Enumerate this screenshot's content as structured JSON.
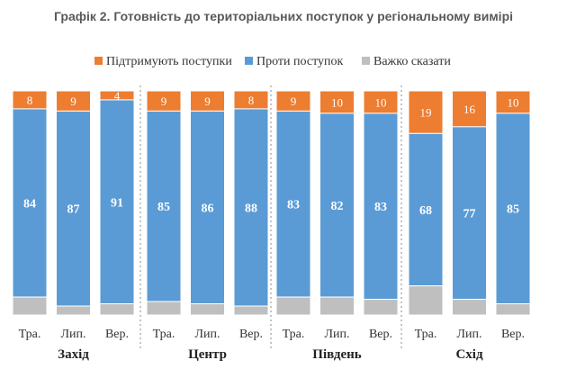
{
  "chart_data": {
    "type": "bar",
    "stacked": true,
    "title": "Графік 2. Готовність до територіальних поступок у регіональному вимірі",
    "legend_position": "top",
    "series": [
      {
        "name": "Підтримують поступки",
        "color": "#ED7D31",
        "values": [
          8,
          9,
          4,
          9,
          9,
          8,
          9,
          10,
          10,
          19,
          16,
          10
        ]
      },
      {
        "name": "Проти поступок",
        "color": "#5B9BD5",
        "values": [
          84,
          87,
          91,
          85,
          86,
          88,
          83,
          82,
          83,
          68,
          77,
          85
        ]
      },
      {
        "name": "Важко сказати",
        "color": "#BFBFBF",
        "values": [
          8,
          4,
          5,
          6,
          5,
          4,
          8,
          8,
          7,
          13,
          7,
          5
        ]
      }
    ],
    "categories": [
      "Тра.",
      "Лип.",
      "Вер.",
      "Тра.",
      "Лип.",
      "Вер.",
      "Тра.",
      "Лип.",
      "Вер.",
      "Тра.",
      "Лип.",
      "Вер."
    ],
    "groups": [
      {
        "label": "Захід",
        "count": 3
      },
      {
        "label": "Центр",
        "count": 3
      },
      {
        "label": "Південь",
        "count": 3
      },
      {
        "label": "Схід",
        "count": 3
      }
    ],
    "ylim": [
      0,
      100
    ]
  }
}
